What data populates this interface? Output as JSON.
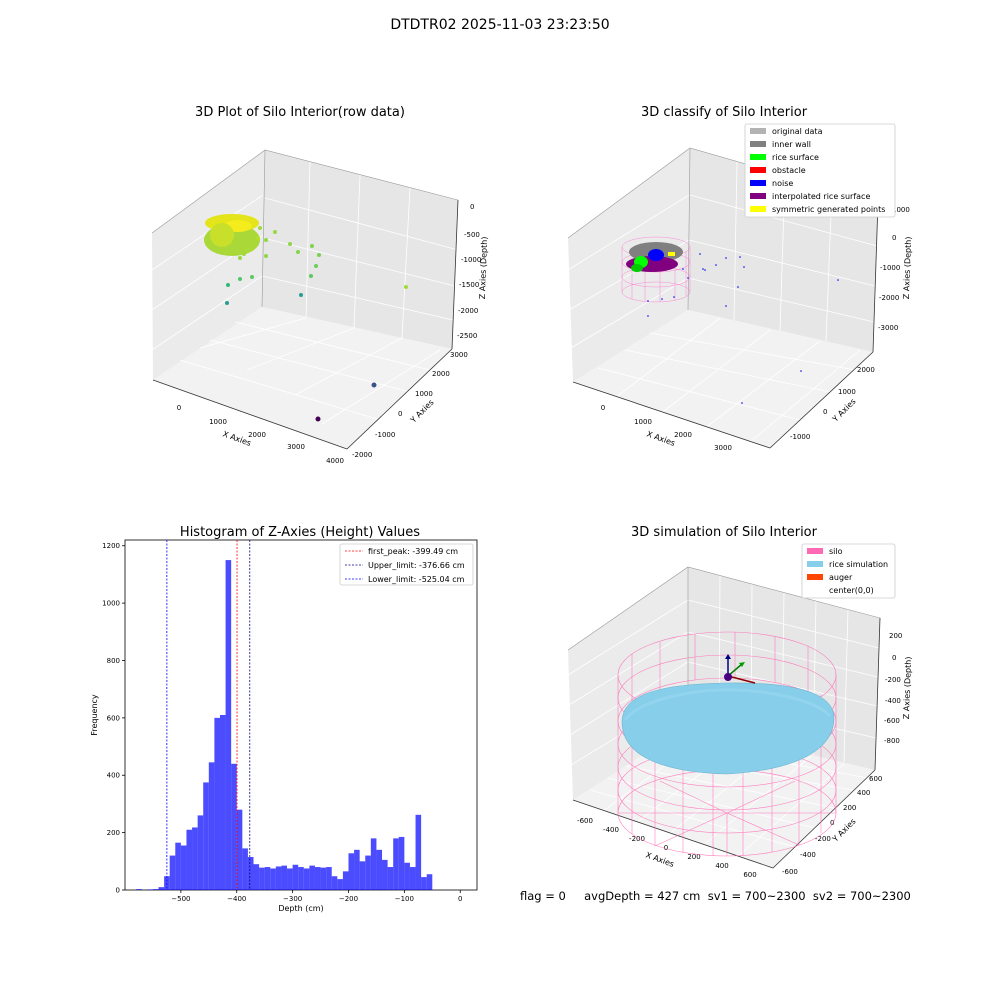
{
  "suptitle": "DTDTR02 2025-11-03 23:23:50",
  "footer": "flag = 0     avgDepth = 427 cm  sv1 = 700~2300  sv2 = 700~2300",
  "chart_data": [
    {
      "type": "scatter",
      "title": "3D Plot of Silo Interior(row data)",
      "xlabel": "X Axies",
      "ylabel": "Y Axies",
      "zlabel": "Z Axies (Depth)",
      "x_ticks": [
        "0",
        "1000",
        "2000",
        "3000",
        "4000"
      ],
      "y_ticks": [
        "-2000",
        "-1000",
        "0",
        "1000",
        "2000",
        "3000"
      ],
      "z_ticks": [
        "0",
        "-500",
        "-1000",
        "-1500",
        "-2000",
        "-2500"
      ],
      "grid": true,
      "colormap": [
        "#440154",
        "#2a9d8f",
        "#7ad151",
        "#fde725"
      ]
    },
    {
      "type": "scatter",
      "title": "3D classify of Silo Interior",
      "xlabel": "X Axies",
      "ylabel": "Y Axies",
      "zlabel": "Z Axies (Depth)",
      "x_ticks": [
        "0",
        "1000",
        "2000",
        "3000"
      ],
      "y_ticks": [
        "-1000",
        "0",
        "1000",
        "2000"
      ],
      "z_ticks": [
        "1000",
        "0",
        "-1000",
        "-2000",
        "-3000"
      ],
      "grid": true,
      "legend": [
        {
          "label": "original data",
          "color": "#b3b3b3"
        },
        {
          "label": "inner wall",
          "color": "#808080"
        },
        {
          "label": "rice surface",
          "color": "#00ff00"
        },
        {
          "label": "obstacle",
          "color": "#ff0000"
        },
        {
          "label": "noise",
          "color": "#0000ff"
        },
        {
          "label": "interpolated rice surface",
          "color": "#800080"
        },
        {
          "label": "symmetric generated points",
          "color": "#ffff00"
        }
      ],
      "legend_position": "top-right"
    },
    {
      "type": "bar",
      "title": "Histogram of Z-Axies (Height) Values",
      "xlabel": "Depth (cm)",
      "ylabel": "Frequency",
      "xlim": [
        -600,
        30
      ],
      "ylim": [
        0,
        1220
      ],
      "x_ticks": [
        -500,
        -400,
        -300,
        -200,
        -100,
        0
      ],
      "y_ticks": [
        0,
        200,
        400,
        600,
        800,
        1000,
        1200
      ],
      "bin_width": 10,
      "bin_starts": [
        -580,
        -570,
        -560,
        -550,
        -540,
        -530,
        -520,
        -510,
        -500,
        -490,
        -480,
        -470,
        -460,
        -450,
        -440,
        -430,
        -420,
        -410,
        -400,
        -390,
        -380,
        -370,
        -360,
        -350,
        -340,
        -330,
        -320,
        -310,
        -300,
        -290,
        -280,
        -270,
        -260,
        -250,
        -240,
        -230,
        -220,
        -210,
        -200,
        -190,
        -180,
        -170,
        -160,
        -150,
        -140,
        -130,
        -120,
        -110,
        -100,
        -90,
        -80,
        -70,
        -60,
        -50,
        -40,
        -30,
        -20,
        -10,
        0
      ],
      "values": [
        3,
        0,
        2,
        3,
        10,
        48,
        120,
        165,
        155,
        210,
        218,
        260,
        375,
        445,
        600,
        610,
        1150,
        440,
        280,
        145,
        115,
        90,
        78,
        80,
        75,
        82,
        85,
        75,
        88,
        80,
        75,
        85,
        80,
        78,
        80,
        48,
        38,
        65,
        128,
        140,
        100,
        120,
        180,
        140,
        105,
        80,
        180,
        185,
        95,
        80,
        262,
        45,
        55,
        0,
        0,
        0,
        0,
        0,
        0
      ],
      "bar_color": "#0000ff",
      "vlines": [
        {
          "label": "first_peak: -399.49 cm",
          "x": -399.49,
          "color": "#ff0000"
        },
        {
          "label": "Upper_limit: -376.66 cm",
          "x": -376.66,
          "color": "#00008b"
        },
        {
          "label": "Lower_limit: -525.04 cm",
          "x": -525.04,
          "color": "#0000ff"
        }
      ],
      "legend_position": "top-right"
    },
    {
      "type": "scatter",
      "title": "3D simulation of Silo Interior",
      "xlabel": "X Axies",
      "ylabel": "Y Axies",
      "zlabel": "Z Axies (Depth)",
      "x_ticks": [
        "-600",
        "-400",
        "-200",
        "0",
        "200",
        "400",
        "600"
      ],
      "y_ticks": [
        "-600",
        "-400",
        "-200",
        "0",
        "200",
        "400",
        "600"
      ],
      "z_ticks": [
        "200",
        "0",
        "-200",
        "-400",
        "-600",
        "-800"
      ],
      "grid": true,
      "legend": [
        {
          "label": "silo",
          "color": "#ff69b4"
        },
        {
          "label": "rice simulation",
          "color": "#87ceeb"
        },
        {
          "label": "auger",
          "color": "#ff4500"
        },
        {
          "label": "center(0,0)",
          "color": ""
        }
      ],
      "legend_position": "top-right"
    }
  ]
}
